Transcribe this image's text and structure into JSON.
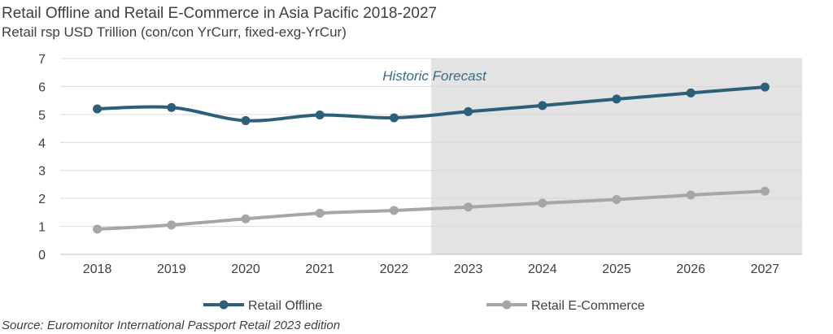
{
  "chart_data": {
    "type": "line",
    "title": "Retail Offline and Retail E-Commerce in Asia Pacific 2018-2027",
    "subtitle": "Retail rsp USD Trillion (con/con YrCurr, fixed-exg-YrCur)",
    "x": [
      "2018",
      "2019",
      "2020",
      "2021",
      "2022",
      "2023",
      "2024",
      "2025",
      "2026",
      "2027"
    ],
    "ylim": [
      0,
      7
    ],
    "yticks": [
      "0",
      "1",
      "2",
      "3",
      "4",
      "5",
      "6",
      "7"
    ],
    "grid": "horizontal",
    "forecast_start": "2023",
    "period_label": "Historic Forecast",
    "series": [
      {
        "name": "Retail Offline",
        "color": "#2e5f7a",
        "values": [
          5.2,
          5.25,
          4.78,
          4.98,
          4.88,
          5.1,
          5.32,
          5.55,
          5.77,
          5.98
        ]
      },
      {
        "name": "Retail E-Commerce",
        "color": "#a6a6a6",
        "values": [
          0.9,
          1.05,
          1.27,
          1.47,
          1.57,
          1.69,
          1.83,
          1.96,
          2.12,
          2.26
        ]
      }
    ],
    "legend": "bottom",
    "source": "Source: Euromonitor International Passport Retail 2023 edition"
  },
  "colors": {
    "forecast_band": "#e3e3e3",
    "gridline": "#d9d9d9",
    "axis": "#bfbfbf",
    "period_label": "#3d6a85"
  }
}
